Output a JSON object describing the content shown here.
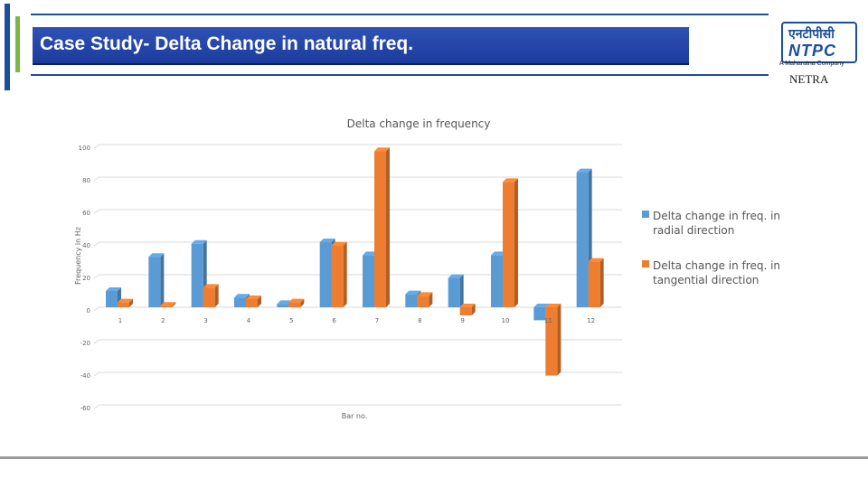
{
  "slide": {
    "title": "Case Study- Delta Change in natural freq.",
    "logo_hindi": "एनटीपीसी",
    "logo_name": "NTPC",
    "logo_tagline": "A Maharatna Company",
    "brand": "NETRA"
  },
  "colors": {
    "title_bg": "#2f52b5",
    "radial": "#5b9bd5",
    "tangential": "#ed7d31",
    "rule": "#1f4e99",
    "accent_green": "#7ab648"
  },
  "chart_data": {
    "type": "bar",
    "title": "Delta change in frequency",
    "xlabel": "Bar no.",
    "ylabel": "Frequency in Hz",
    "ylim": [
      -60,
      100
    ],
    "yticks": [
      100,
      80,
      60,
      40,
      20,
      0,
      -20,
      -40,
      -60
    ],
    "categories": [
      "1",
      "2",
      "3",
      "4",
      "5",
      "6",
      "7",
      "8",
      "9",
      "10",
      "11",
      "12"
    ],
    "series": [
      {
        "name": "Delta change in freq. in radial direction",
        "values": [
          10,
          31,
          39,
          6,
          2,
          40,
          32,
          8,
          18,
          32,
          -8,
          83
        ]
      },
      {
        "name": "Delta change in freq. in tangential direction",
        "values": [
          3,
          1,
          12,
          5,
          3,
          38,
          96,
          7,
          -5,
          77,
          -42,
          28
        ]
      }
    ],
    "legend_position": "right",
    "grid": true
  }
}
